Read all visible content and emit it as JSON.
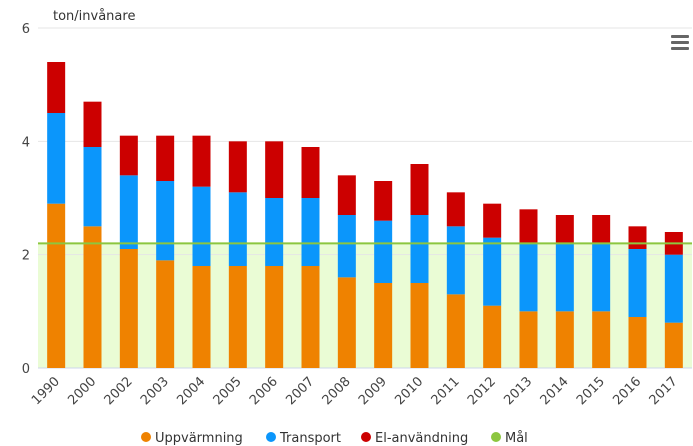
{
  "chart_data": {
    "type": "stacked_bar",
    "y_axis_label": "ton/invånare",
    "categories": [
      "1990",
      "2000",
      "2002",
      "2003",
      "2004",
      "2005",
      "2006",
      "2007",
      "2008",
      "2009",
      "2010",
      "2011",
      "2012",
      "2013",
      "2014",
      "2015",
      "2016",
      "2017"
    ],
    "series": [
      {
        "name": "Uppvärmning",
        "color": "#ef8200",
        "values": [
          2.9,
          2.5,
          2.1,
          1.9,
          1.8,
          1.8,
          1.8,
          1.8,
          1.6,
          1.5,
          1.5,
          1.3,
          1.1,
          1.0,
          1.0,
          1.0,
          0.9,
          0.8
        ]
      },
      {
        "name": "Transport",
        "color": "#0b96fb",
        "values": [
          1.6,
          1.4,
          1.3,
          1.4,
          1.4,
          1.3,
          1.2,
          1.2,
          1.1,
          1.1,
          1.2,
          1.2,
          1.2,
          1.2,
          1.2,
          1.2,
          1.2,
          1.2
        ]
      },
      {
        "name": "El-användning",
        "color": "#cc0000",
        "values": [
          0.9,
          0.8,
          0.7,
          0.8,
          0.9,
          0.9,
          1.0,
          0.9,
          0.7,
          0.7,
          0.9,
          0.6,
          0.6,
          0.6,
          0.5,
          0.5,
          0.4,
          0.4
        ]
      }
    ],
    "target": {
      "name": "Mål",
      "color": "#8cc63f",
      "area_color": "#eafcd5",
      "value": 2.2
    },
    "ylim": [
      0,
      6
    ],
    "yticks": [
      0,
      2,
      4,
      6
    ],
    "grid": true
  }
}
